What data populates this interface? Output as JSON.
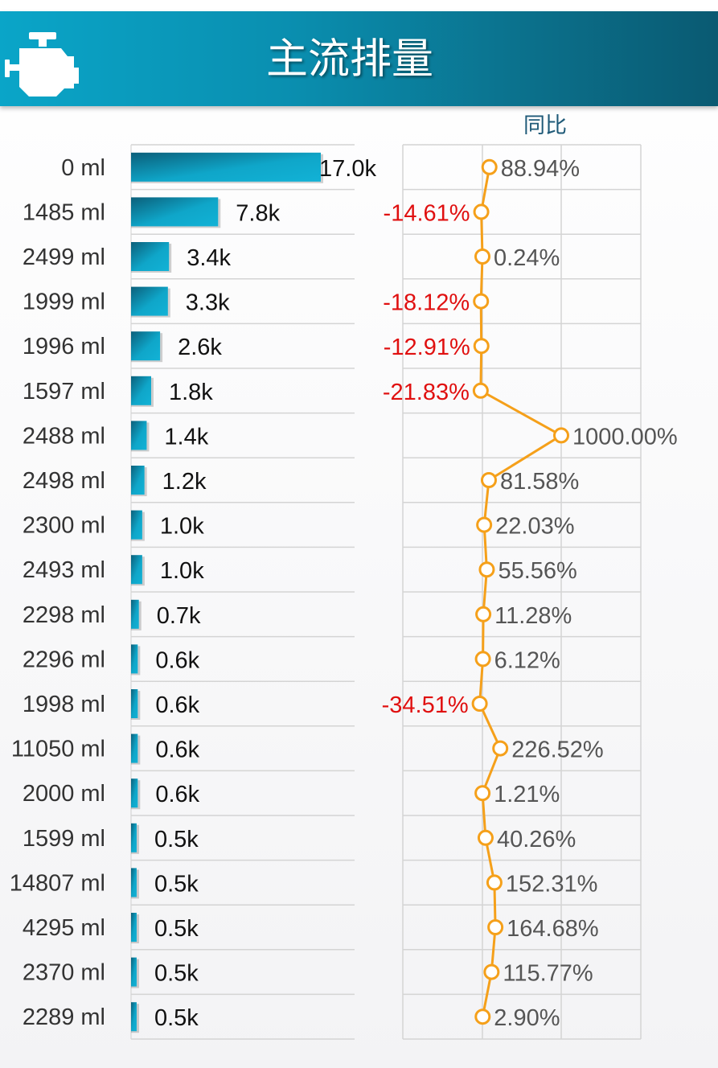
{
  "header": {
    "title": "主流排量",
    "icon": "engine-icon"
  },
  "chart_data": {
    "type": "bar",
    "categories": [
      "0 ml",
      "1485 ml",
      "2499 ml",
      "1999 ml",
      "1996 ml",
      "1597 ml",
      "2488 ml",
      "2498 ml",
      "2300 ml",
      "2493 ml",
      "2298 ml",
      "2296 ml",
      "1998 ml",
      "11050 ml",
      "2000 ml",
      "1599 ml",
      "14807 ml",
      "4295 ml",
      "2370 ml",
      "2289 ml"
    ],
    "series": [
      {
        "values": [
          17.0,
          7.8,
          3.4,
          3.3,
          2.6,
          1.8,
          1.4,
          1.2,
          1.0,
          1.0,
          0.7,
          0.6,
          0.6,
          0.6,
          0.6,
          0.5,
          0.5,
          0.5,
          0.5,
          0.5
        ],
        "labels": [
          "17.0k",
          "7.8k",
          "3.4k",
          "3.3k",
          "2.6k",
          "1.8k",
          "1.4k",
          "1.2k",
          "1.0k",
          "1.0k",
          "0.7k",
          "0.6k",
          "0.6k",
          "0.6k",
          "0.6k",
          "0.5k",
          "0.5k",
          "0.5k",
          "0.5k",
          "0.5k"
        ]
      }
    ],
    "yoy": {
      "title": "同比",
      "values": [
        88.94,
        -14.61,
        0.24,
        -18.12,
        -12.91,
        -21.83,
        1000.0,
        81.58,
        22.03,
        55.56,
        11.28,
        6.12,
        -34.51,
        226.52,
        1.21,
        40.26,
        152.31,
        164.68,
        115.77,
        2.9
      ],
      "labels": [
        "88.94%",
        "-14.61%",
        "0.24%",
        "-18.12%",
        "-12.91%",
        "-21.83%",
        "1000.00%",
        "81.58%",
        "22.03%",
        "55.56%",
        "11.28%",
        "6.12%",
        "-34.51%",
        "226.52%",
        "1.21%",
        "40.26%",
        "152.31%",
        "164.68%",
        "115.77%",
        "2.90%"
      ]
    },
    "colors": {
      "bar_dark": "#0b5f7a",
      "bar_light": "#0fa6c9",
      "line": "#f5a01a",
      "negative": "#e01010",
      "positive": "#555555"
    }
  }
}
